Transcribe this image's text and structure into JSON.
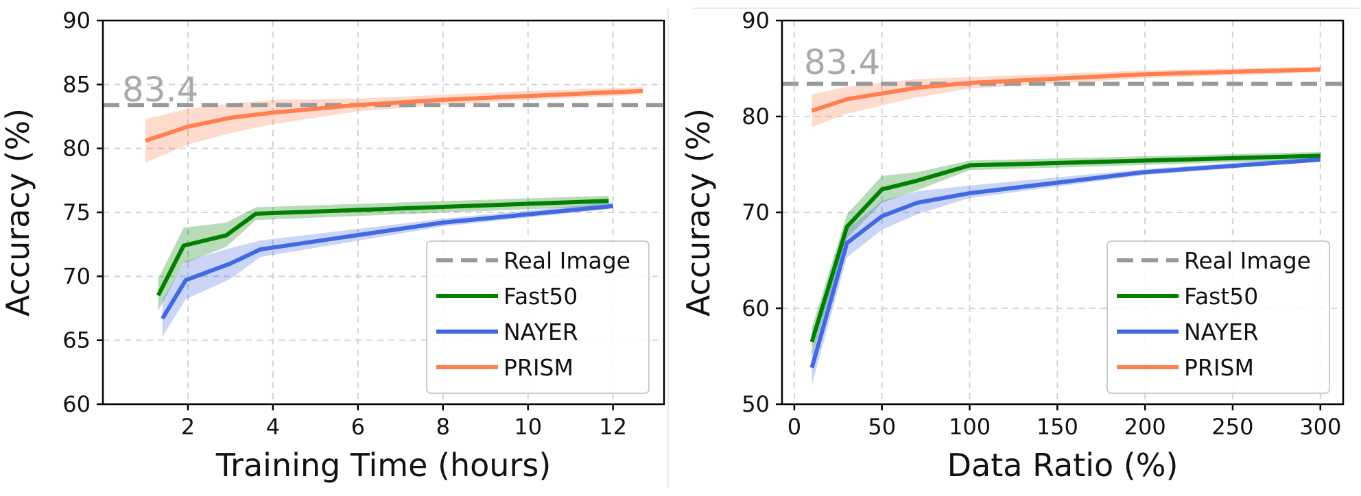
{
  "chart_data": [
    {
      "type": "line",
      "xlabel": "Training Time (hours)",
      "ylabel": "Accuracy (%)",
      "xlim": [
        0.0,
        13.2
      ],
      "ylim": [
        60,
        90
      ],
      "xticks": [
        2,
        4,
        6,
        8,
        10,
        12
      ],
      "xtick_labels": [
        "2",
        "4",
        "6",
        "8",
        "10",
        "12"
      ],
      "yticks": [
        60,
        65,
        70,
        75,
        80,
        85,
        90
      ],
      "ytick_labels": [
        "60",
        "65",
        "70",
        "75",
        "80",
        "85",
        "90"
      ],
      "grid": true,
      "legend_position": "lower-right",
      "reference_line": {
        "name": "Real Image",
        "value": 83.4,
        "label": "83.4",
        "color": "#999999"
      },
      "series": [
        {
          "name": "Fast50",
          "color": "#007f00",
          "x": [
            1.3,
            1.9,
            2.9,
            3.6,
            11.9
          ],
          "values": [
            68.5,
            72.4,
            73.2,
            74.9,
            75.9
          ],
          "lower": [
            67.3,
            71.0,
            72.3,
            74.4,
            75.5
          ],
          "upper": [
            69.8,
            73.8,
            74.2,
            75.4,
            76.3
          ]
        },
        {
          "name": "NAYER",
          "color": "#4169e1",
          "x": [
            1.4,
            1.95,
            3.0,
            3.7,
            8.0,
            12.0
          ],
          "values": [
            66.7,
            69.7,
            71.0,
            72.1,
            74.2,
            75.5
          ],
          "lower": [
            65.3,
            68.2,
            69.8,
            71.5,
            73.9,
            75.3
          ],
          "upper": [
            68.2,
            71.2,
            72.2,
            72.8,
            74.5,
            75.8
          ]
        },
        {
          "name": "PRISM",
          "color": "#ff7f50",
          "x": [
            1.0,
            2.0,
            3.0,
            4.0,
            6.0,
            8.0,
            10.0,
            12.7
          ],
          "values": [
            80.6,
            81.7,
            82.4,
            82.8,
            83.4,
            83.8,
            84.1,
            84.5
          ],
          "lower": [
            78.9,
            80.3,
            81.2,
            81.9,
            82.9,
            83.4,
            83.8,
            84.2
          ],
          "upper": [
            82.3,
            83.1,
            83.5,
            83.8,
            83.9,
            84.2,
            84.5,
            84.8
          ]
        }
      ]
    },
    {
      "type": "line",
      "xlabel": "Data Ratio (%)",
      "ylabel": "Accuracy (%)",
      "xlim": [
        -7,
        313
      ],
      "ylim": [
        50,
        90
      ],
      "xticks": [
        0,
        50,
        100,
        150,
        200,
        250,
        300
      ],
      "xtick_labels": [
        "0",
        "50",
        "100",
        "150",
        "200",
        "250",
        "300"
      ],
      "yticks": [
        50,
        60,
        70,
        80,
        90
      ],
      "ytick_labels": [
        "50",
        "60",
        "70",
        "80",
        "90"
      ],
      "grid": true,
      "legend_position": "lower-right",
      "reference_line": {
        "name": "Real Image",
        "value": 83.4,
        "label": "83.4",
        "color": "#999999"
      },
      "series": [
        {
          "name": "Fast50",
          "color": "#007f00",
          "x": [
            10,
            30,
            50,
            70,
            100,
            300
          ],
          "values": [
            56.5,
            68.5,
            72.4,
            73.3,
            74.9,
            75.9
          ],
          "lower": [
            55.0,
            67.3,
            71.0,
            72.3,
            74.4,
            75.5
          ],
          "upper": [
            58.0,
            69.8,
            73.8,
            74.2,
            75.4,
            76.3
          ]
        },
        {
          "name": "NAYER",
          "color": "#4169e1",
          "x": [
            10,
            30,
            50,
            70,
            100,
            200,
            300
          ],
          "values": [
            53.8,
            66.8,
            69.6,
            71.0,
            72.0,
            74.2,
            75.5
          ],
          "lower": [
            52.0,
            65.3,
            68.2,
            69.8,
            71.5,
            73.9,
            75.3
          ],
          "upper": [
            55.5,
            68.2,
            71.2,
            72.2,
            72.8,
            74.5,
            75.8
          ]
        },
        {
          "name": "PRISM",
          "color": "#ff7f50",
          "x": [
            10,
            30,
            70,
            100,
            200,
            300
          ],
          "values": [
            80.6,
            81.8,
            83.0,
            83.5,
            84.4,
            84.9
          ],
          "lower": [
            78.9,
            80.3,
            82.0,
            82.9,
            84.0,
            84.6
          ],
          "upper": [
            82.3,
            83.1,
            83.9,
            84.1,
            84.8,
            85.2
          ]
        }
      ]
    }
  ]
}
